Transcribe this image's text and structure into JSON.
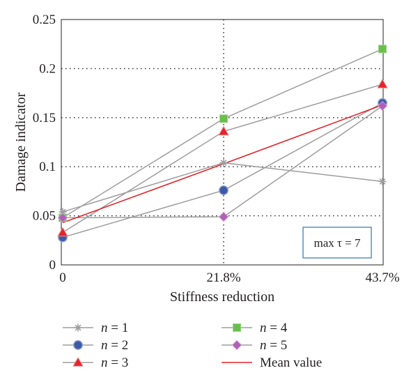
{
  "chart_data": {
    "type": "line",
    "x": [
      "0",
      "21.8%",
      "43.7%"
    ],
    "xlabel": "Stiffness reduction",
    "ylabel": "Damage indicator",
    "ylim": [
      0,
      0.25
    ],
    "yticks": [
      "0",
      "0.05",
      "0.1",
      "0.15",
      "0.2",
      "0.25"
    ],
    "grid": "dotted",
    "legend_position": "bottom",
    "annotation": "max τ = 7",
    "series": [
      {
        "name": "n = 1",
        "var": "n",
        "eq": " = 1",
        "marker": "star",
        "color": "#9d9d9d",
        "values": [
          0.054,
          0.104,
          0.085
        ]
      },
      {
        "name": "n = 2",
        "var": "n",
        "eq": " = 2",
        "marker": "circle",
        "color": "#3d5aa8",
        "values": [
          0.028,
          0.076,
          0.165
        ]
      },
      {
        "name": "n = 3",
        "var": "n",
        "eq": " = 3",
        "marker": "triangle",
        "color": "#e3242b",
        "values": [
          0.033,
          0.136,
          0.184
        ]
      },
      {
        "name": "n = 4",
        "var": "n",
        "eq": " = 4",
        "marker": "square",
        "color": "#6abf4b",
        "values": [
          0.048,
          0.149,
          0.22
        ]
      },
      {
        "name": "n = 5",
        "var": "n",
        "eq": " = 5",
        "marker": "diamond",
        "color": "#b060b5",
        "values": [
          0.048,
          0.049,
          0.162
        ]
      },
      {
        "name": "Mean value",
        "var": "",
        "eq": "Mean value",
        "marker": "none",
        "color": "#e3242b",
        "values": [
          0.043,
          0.103,
          0.163
        ]
      }
    ]
  }
}
